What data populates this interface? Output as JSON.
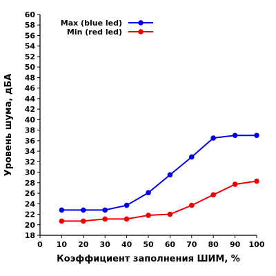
{
  "chart_data": {
    "type": "line",
    "xlabel": "Коэффициент заполнения ШИМ, %",
    "ylabel": "Уровень шума, дБА",
    "xlim": [
      0,
      100
    ],
    "ylim": [
      18,
      60
    ],
    "x_ticks": [
      "0",
      "10",
      "20",
      "30",
      "40",
      "50",
      "60",
      "70",
      "80",
      "90",
      "100"
    ],
    "y_ticks": [
      "18",
      "20",
      "22",
      "24",
      "26",
      "28",
      "30",
      "32",
      "34",
      "36",
      "38",
      "40",
      "42",
      "44",
      "46",
      "48",
      "50",
      "52",
      "54",
      "56",
      "58",
      "60"
    ],
    "grid": false,
    "legend_position": "top-right",
    "x": [
      10,
      20,
      30,
      40,
      50,
      60,
      70,
      80,
      90,
      100
    ],
    "series": [
      {
        "name": "Max (blue led)",
        "color": "#0000ee",
        "values": [
          22.8,
          22.8,
          22.8,
          23.7,
          26.1,
          29.5,
          32.9,
          36.5,
          37.0,
          37.0
        ]
      },
      {
        "name": "Min (red led)",
        "color": "#ee0000",
        "values": [
          20.7,
          20.7,
          21.1,
          21.1,
          21.8,
          22.0,
          23.7,
          25.7,
          27.7,
          28.3
        ]
      }
    ]
  }
}
